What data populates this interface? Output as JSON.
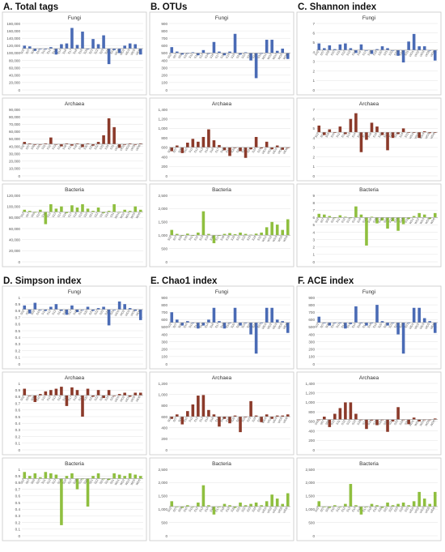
{
  "colors": {
    "Fungi": "#4a6bb5",
    "Archaea": "#8b3a2a",
    "Bacteria": "#8fbf3f",
    "grid": "#e3e3e3",
    "frame": "#c8c8c8",
    "tick": "#555555"
  },
  "sample_labels": [
    "S02",
    "S07",
    "S09",
    "S10",
    "S11",
    "S12",
    "S13",
    "S14",
    "S16",
    "S17",
    "S18",
    "S19",
    "S20",
    "S21",
    "S22",
    "S23",
    "S24",
    "S31",
    "WD1",
    "WD2",
    "WD3",
    "WD5",
    "WD6"
  ],
  "panel_titles": [
    "A. Total tags",
    "B. OTUs",
    "C. Shannon index",
    "D. Simpson index",
    "E. Chao1 index",
    "F. ACE index"
  ],
  "chart_data": [
    {
      "panel": "A",
      "title": "Fungi",
      "group": "Fungi",
      "type": "bar",
      "ylim": [
        0,
        180000
      ],
      "yticks": [
        "0",
        "20,000",
        "40,000",
        "60,000",
        "80,000",
        "100,000",
        "120,000",
        "140,000",
        "160,000",
        "180,000"
      ],
      "baseline": 112000,
      "values": [
        120000,
        118000,
        106000,
        112000,
        110000,
        116000,
        96000,
        124000,
        126000,
        168000,
        122000,
        158000,
        110000,
        138000,
        124000,
        148000,
        70000,
        108000,
        100000,
        120000,
        126000,
        124000,
        96000
      ]
    },
    {
      "panel": "A",
      "title": "Archaea",
      "group": "Archaea",
      "type": "bar",
      "ylim": [
        0,
        90000
      ],
      "yticks": [
        "0",
        "10,000",
        "20,000",
        "30,000",
        "40,000",
        "50,000",
        "60,000",
        "70,000",
        "80,000",
        "90,000"
      ],
      "baseline": 43000,
      "values": [
        46000,
        44000,
        42000,
        43000,
        44000,
        52000,
        43000,
        40000,
        44000,
        41000,
        44000,
        39000,
        44000,
        41000,
        46000,
        55000,
        78000,
        66000,
        38000,
        42000,
        44000,
        42000,
        44000
      ]
    },
    {
      "panel": "A",
      "title": "Bacteria",
      "group": "Bacteria",
      "type": "bar",
      "ylim": [
        0,
        120000
      ],
      "yticks": [
        "0",
        "20,000",
        "40,000",
        "60,000",
        "80,000",
        "100,000",
        "120,000"
      ],
      "baseline": 90000,
      "values": [
        94000,
        92000,
        90000,
        94000,
        68000,
        104000,
        96000,
        100000,
        88000,
        102000,
        98000,
        104000,
        96000,
        92000,
        98000,
        88000,
        92000,
        104000,
        90000,
        94000,
        92000,
        100000,
        94000
      ]
    },
    {
      "panel": "B",
      "title": "Fungi",
      "group": "Fungi",
      "type": "bar",
      "ylim": [
        0,
        900
      ],
      "yticks": [
        "0",
        "100",
        "200",
        "300",
        "400",
        "500",
        "600",
        "700",
        "800",
        "900"
      ],
      "baseline": 500,
      "values": [
        580,
        520,
        480,
        500,
        510,
        470,
        540,
        490,
        650,
        520,
        470,
        520,
        760,
        480,
        510,
        400,
        160,
        500,
        680,
        680,
        530,
        560,
        420
      ]
    },
    {
      "panel": "B",
      "title": "Archaea",
      "group": "Archaea",
      "type": "bar",
      "ylim": [
        0,
        1400
      ],
      "yticks": [
        "0",
        "200",
        "400",
        "600",
        "800",
        "1,000",
        "1,200",
        "1,400"
      ],
      "baseline": 600,
      "values": [
        520,
        640,
        480,
        700,
        780,
        720,
        820,
        980,
        750,
        650,
        540,
        420,
        600,
        520,
        380,
        560,
        820,
        580,
        720,
        560,
        640,
        550,
        600
      ]
    },
    {
      "panel": "B",
      "title": "Bacteria",
      "group": "Bacteria",
      "type": "bar",
      "ylim": [
        0,
        2500
      ],
      "yticks": [
        "0",
        "500",
        "1,000",
        "1,500",
        "2,000",
        "2,500"
      ],
      "baseline": 1000,
      "values": [
        1200,
        1050,
        980,
        1060,
        1000,
        1100,
        1900,
        1050,
        700,
        1000,
        1050,
        1080,
        1040,
        1100,
        1050,
        1020,
        1060,
        1100,
        1300,
        1500,
        1400,
        1200,
        1600
      ]
    },
    {
      "panel": "C",
      "title": "Fungi",
      "group": "Fungi",
      "type": "bar",
      "ylim": [
        0,
        7
      ],
      "yticks": [
        "0",
        "1",
        "2",
        "3",
        "4",
        "5",
        "6",
        "7"
      ],
      "baseline": 4.2,
      "values": [
        4.9,
        4.4,
        4.7,
        4.3,
        4.8,
        4.9,
        4.4,
        3.9,
        4.8,
        4.2,
        3.8,
        4.3,
        4.6,
        4.4,
        4.2,
        3.6,
        2.9,
        5.1,
        5.9,
        4.6,
        4.6,
        4.2,
        3.1
      ]
    },
    {
      "panel": "C",
      "title": "Archaea",
      "group": "Archaea",
      "type": "bar",
      "ylim": [
        0,
        7
      ],
      "yticks": [
        "0",
        "1",
        "2",
        "3",
        "4",
        "5",
        "6",
        "7"
      ],
      "baseline": 4.6,
      "values": [
        5.3,
        4.3,
        4.9,
        4.6,
        5.2,
        4.4,
        6.0,
        6.6,
        2.5,
        3.8,
        5.6,
        5.2,
        4.3,
        2.7,
        4.0,
        4.4,
        5.0,
        4.6,
        4.6,
        4.0,
        4.7,
        4.5,
        4.6
      ]
    },
    {
      "panel": "C",
      "title": "Bacteria",
      "group": "Bacteria",
      "type": "bar",
      "ylim": [
        0,
        9
      ],
      "yticks": [
        "0",
        "1",
        "2",
        "3",
        "4",
        "5",
        "6",
        "7",
        "8",
        "9"
      ],
      "baseline": 6.0,
      "values": [
        6.5,
        6.4,
        6.2,
        6.0,
        6.3,
        6.1,
        6.0,
        7.5,
        6.4,
        2.2,
        6.1,
        5.2,
        5.6,
        4.5,
        5.5,
        4.2,
        5.1,
        5.8,
        6.2,
        6.6,
        6.4,
        5.8,
        6.6
      ]
    },
    {
      "panel": "D",
      "title": "Fungi",
      "group": "Fungi",
      "type": "bar",
      "ylim": [
        0,
        1
      ],
      "yticks": [
        "0",
        "0.1",
        "0.2",
        "0.3",
        "0.4",
        "0.5",
        "0.6",
        "0.7",
        "0.8",
        "0.9",
        "1"
      ],
      "baseline": 0.82,
      "values": [
        0.88,
        0.76,
        0.92,
        0.82,
        0.8,
        0.86,
        0.9,
        0.8,
        0.74,
        0.88,
        0.78,
        0.82,
        0.86,
        0.8,
        0.84,
        0.86,
        0.58,
        0.82,
        0.94,
        0.9,
        0.84,
        0.8,
        0.66
      ]
    },
    {
      "panel": "D",
      "title": "Archaea",
      "group": "Archaea",
      "type": "bar",
      "ylim": [
        0,
        1
      ],
      "yticks": [
        "0",
        "0.1",
        "0.2",
        "0.3",
        "0.4",
        "0.5",
        "0.6",
        "0.7",
        "0.8",
        "0.9",
        "1"
      ],
      "baseline": 0.82,
      "values": [
        0.92,
        0.82,
        0.72,
        0.84,
        0.88,
        0.9,
        0.92,
        0.95,
        0.66,
        0.94,
        0.9,
        0.5,
        0.92,
        0.8,
        0.9,
        0.78,
        0.9,
        0.82,
        0.84,
        0.86,
        0.8,
        0.86,
        0.86
      ]
    },
    {
      "panel": "D",
      "title": "Bacteria",
      "group": "Bacteria",
      "type": "bar",
      "ylim": [
        0,
        1
      ],
      "yticks": [
        "0",
        "0.1",
        "0.2",
        "0.3",
        "0.4",
        "0.5",
        "0.6",
        "0.7",
        "0.8",
        "0.9",
        "1"
      ],
      "baseline": 0.86,
      "values": [
        0.96,
        0.9,
        0.94,
        0.88,
        0.96,
        0.94,
        0.92,
        0.16,
        0.9,
        0.94,
        0.7,
        0.86,
        0.44,
        0.9,
        0.94,
        0.86,
        0.84,
        0.94,
        0.92,
        0.9,
        0.94,
        0.92,
        0.9
      ]
    },
    {
      "panel": "E",
      "title": "Fungi",
      "group": "Fungi",
      "type": "bar",
      "ylim": [
        0,
        900
      ],
      "yticks": [
        "0",
        "100",
        "200",
        "300",
        "400",
        "500",
        "600",
        "700",
        "800",
        "900"
      ],
      "baseline": 560,
      "values": [
        700,
        600,
        520,
        580,
        560,
        480,
        520,
        600,
        760,
        580,
        480,
        560,
        760,
        520,
        560,
        400,
        140,
        560,
        760,
        760,
        600,
        580,
        420
      ]
    },
    {
      "panel": "E",
      "title": "Archaea",
      "group": "Archaea",
      "type": "bar",
      "ylim": [
        0,
        1200
      ],
      "yticks": [
        "0",
        "200",
        "400",
        "600",
        "800",
        "1,000",
        "1,200"
      ],
      "baseline": 600,
      "values": [
        560,
        640,
        460,
        700,
        820,
        980,
        990,
        720,
        640,
        420,
        560,
        480,
        620,
        320,
        600,
        880,
        620,
        500,
        640,
        560,
        620,
        620,
        640
      ]
    },
    {
      "panel": "E",
      "title": "Bacteria",
      "group": "Bacteria",
      "type": "bar",
      "ylim": [
        0,
        2500
      ],
      "yticks": [
        "0",
        "500",
        "1,000",
        "1,500",
        "2,000",
        "2,500"
      ],
      "baseline": 1100,
      "values": [
        1300,
        1100,
        1050,
        1150,
        1100,
        1250,
        1900,
        1150,
        800,
        1100,
        1200,
        1150,
        1050,
        1250,
        1150,
        1200,
        1250,
        1150,
        1300,
        1550,
        1400,
        1200,
        1600
      ]
    },
    {
      "panel": "F",
      "title": "Fungi",
      "group": "Fungi",
      "type": "bar",
      "ylim": [
        0,
        900
      ],
      "yticks": [
        "0",
        "100",
        "200",
        "300",
        "400",
        "500",
        "600",
        "700",
        "800",
        "900"
      ],
      "baseline": 560,
      "values": [
        640,
        560,
        520,
        560,
        560,
        480,
        540,
        780,
        560,
        520,
        560,
        800,
        580,
        520,
        560,
        400,
        140,
        560,
        760,
        760,
        620,
        580,
        420
      ]
    },
    {
      "panel": "F",
      "title": "Archaea",
      "group": "Archaea",
      "type": "bar",
      "ylim": [
        0,
        1400
      ],
      "yticks": [
        "0",
        "200",
        "400",
        "600",
        "800",
        "1,000",
        "1,200",
        "1,400"
      ],
      "baseline": 640,
      "values": [
        640,
        700,
        480,
        760,
        880,
        1000,
        1000,
        760,
        640,
        440,
        620,
        520,
        640,
        380,
        600,
        900,
        640,
        540,
        680,
        600,
        640,
        640,
        660
      ]
    },
    {
      "panel": "F",
      "title": "Bacteria",
      "group": "Bacteria",
      "type": "bar",
      "ylim": [
        0,
        2500
      ],
      "yticks": [
        "0",
        "500",
        "1,000",
        "1,500",
        "2,000",
        "2,500"
      ],
      "baseline": 1100,
      "values": [
        1300,
        1100,
        1050,
        1150,
        1100,
        1200,
        1950,
        1150,
        800,
        1100,
        1200,
        1150,
        1050,
        1250,
        1150,
        1200,
        1250,
        1150,
        1300,
        1650,
        1400,
        1200,
        1650
      ]
    }
  ]
}
